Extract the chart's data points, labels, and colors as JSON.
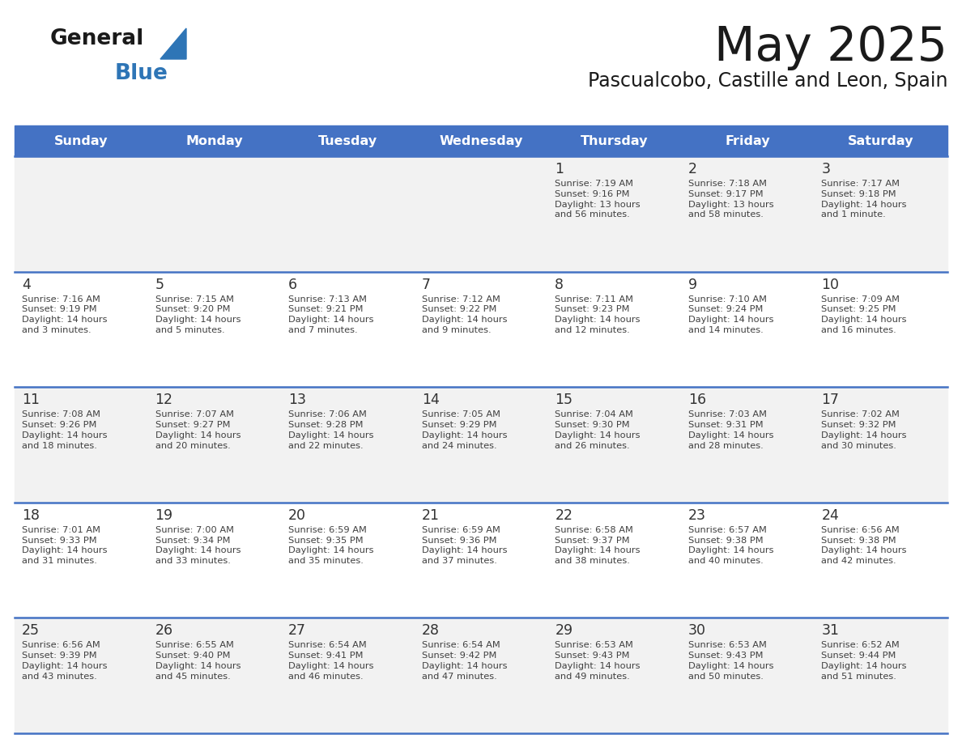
{
  "title": "May 2025",
  "subtitle": "Pascualcobo, Castille and Leon, Spain",
  "header_bg_color": "#4472C4",
  "header_text_color": "#FFFFFF",
  "day_names": [
    "Sunday",
    "Monday",
    "Tuesday",
    "Wednesday",
    "Thursday",
    "Friday",
    "Saturday"
  ],
  "row0_color": "#F2F2F2",
  "row1_color": "#FFFFFF",
  "cell_text_color": "#404040",
  "day_num_color": "#333333",
  "divider_color": "#4472C4",
  "logo_color": "#2E75B6",
  "days": [
    {
      "day": 1,
      "col": 4,
      "row": 0,
      "sunrise": "7:19 AM",
      "sunset": "9:16 PM",
      "daylight_hours": 13,
      "daylight_minutes": 56
    },
    {
      "day": 2,
      "col": 5,
      "row": 0,
      "sunrise": "7:18 AM",
      "sunset": "9:17 PM",
      "daylight_hours": 13,
      "daylight_minutes": 58
    },
    {
      "day": 3,
      "col": 6,
      "row": 0,
      "sunrise": "7:17 AM",
      "sunset": "9:18 PM",
      "daylight_hours": 14,
      "daylight_minutes": 1
    },
    {
      "day": 4,
      "col": 0,
      "row": 1,
      "sunrise": "7:16 AM",
      "sunset": "9:19 PM",
      "daylight_hours": 14,
      "daylight_minutes": 3
    },
    {
      "day": 5,
      "col": 1,
      "row": 1,
      "sunrise": "7:15 AM",
      "sunset": "9:20 PM",
      "daylight_hours": 14,
      "daylight_minutes": 5
    },
    {
      "day": 6,
      "col": 2,
      "row": 1,
      "sunrise": "7:13 AM",
      "sunset": "9:21 PM",
      "daylight_hours": 14,
      "daylight_minutes": 7
    },
    {
      "day": 7,
      "col": 3,
      "row": 1,
      "sunrise": "7:12 AM",
      "sunset": "9:22 PM",
      "daylight_hours": 14,
      "daylight_minutes": 9
    },
    {
      "day": 8,
      "col": 4,
      "row": 1,
      "sunrise": "7:11 AM",
      "sunset": "9:23 PM",
      "daylight_hours": 14,
      "daylight_minutes": 12
    },
    {
      "day": 9,
      "col": 5,
      "row": 1,
      "sunrise": "7:10 AM",
      "sunset": "9:24 PM",
      "daylight_hours": 14,
      "daylight_minutes": 14
    },
    {
      "day": 10,
      "col": 6,
      "row": 1,
      "sunrise": "7:09 AM",
      "sunset": "9:25 PM",
      "daylight_hours": 14,
      "daylight_minutes": 16
    },
    {
      "day": 11,
      "col": 0,
      "row": 2,
      "sunrise": "7:08 AM",
      "sunset": "9:26 PM",
      "daylight_hours": 14,
      "daylight_minutes": 18
    },
    {
      "day": 12,
      "col": 1,
      "row": 2,
      "sunrise": "7:07 AM",
      "sunset": "9:27 PM",
      "daylight_hours": 14,
      "daylight_minutes": 20
    },
    {
      "day": 13,
      "col": 2,
      "row": 2,
      "sunrise": "7:06 AM",
      "sunset": "9:28 PM",
      "daylight_hours": 14,
      "daylight_minutes": 22
    },
    {
      "day": 14,
      "col": 3,
      "row": 2,
      "sunrise": "7:05 AM",
      "sunset": "9:29 PM",
      "daylight_hours": 14,
      "daylight_minutes": 24
    },
    {
      "day": 15,
      "col": 4,
      "row": 2,
      "sunrise": "7:04 AM",
      "sunset": "9:30 PM",
      "daylight_hours": 14,
      "daylight_minutes": 26
    },
    {
      "day": 16,
      "col": 5,
      "row": 2,
      "sunrise": "7:03 AM",
      "sunset": "9:31 PM",
      "daylight_hours": 14,
      "daylight_minutes": 28
    },
    {
      "day": 17,
      "col": 6,
      "row": 2,
      "sunrise": "7:02 AM",
      "sunset": "9:32 PM",
      "daylight_hours": 14,
      "daylight_minutes": 30
    },
    {
      "day": 18,
      "col": 0,
      "row": 3,
      "sunrise": "7:01 AM",
      "sunset": "9:33 PM",
      "daylight_hours": 14,
      "daylight_minutes": 31
    },
    {
      "day": 19,
      "col": 1,
      "row": 3,
      "sunrise": "7:00 AM",
      "sunset": "9:34 PM",
      "daylight_hours": 14,
      "daylight_minutes": 33
    },
    {
      "day": 20,
      "col": 2,
      "row": 3,
      "sunrise": "6:59 AM",
      "sunset": "9:35 PM",
      "daylight_hours": 14,
      "daylight_minutes": 35
    },
    {
      "day": 21,
      "col": 3,
      "row": 3,
      "sunrise": "6:59 AM",
      "sunset": "9:36 PM",
      "daylight_hours": 14,
      "daylight_minutes": 37
    },
    {
      "day": 22,
      "col": 4,
      "row": 3,
      "sunrise": "6:58 AM",
      "sunset": "9:37 PM",
      "daylight_hours": 14,
      "daylight_minutes": 38
    },
    {
      "day": 23,
      "col": 5,
      "row": 3,
      "sunrise": "6:57 AM",
      "sunset": "9:38 PM",
      "daylight_hours": 14,
      "daylight_minutes": 40
    },
    {
      "day": 24,
      "col": 6,
      "row": 3,
      "sunrise": "6:56 AM",
      "sunset": "9:38 PM",
      "daylight_hours": 14,
      "daylight_minutes": 42
    },
    {
      "day": 25,
      "col": 0,
      "row": 4,
      "sunrise": "6:56 AM",
      "sunset": "9:39 PM",
      "daylight_hours": 14,
      "daylight_minutes": 43
    },
    {
      "day": 26,
      "col": 1,
      "row": 4,
      "sunrise": "6:55 AM",
      "sunset": "9:40 PM",
      "daylight_hours": 14,
      "daylight_minutes": 45
    },
    {
      "day": 27,
      "col": 2,
      "row": 4,
      "sunrise": "6:54 AM",
      "sunset": "9:41 PM",
      "daylight_hours": 14,
      "daylight_minutes": 46
    },
    {
      "day": 28,
      "col": 3,
      "row": 4,
      "sunrise": "6:54 AM",
      "sunset": "9:42 PM",
      "daylight_hours": 14,
      "daylight_minutes": 47
    },
    {
      "day": 29,
      "col": 4,
      "row": 4,
      "sunrise": "6:53 AM",
      "sunset": "9:43 PM",
      "daylight_hours": 14,
      "daylight_minutes": 49
    },
    {
      "day": 30,
      "col": 5,
      "row": 4,
      "sunrise": "6:53 AM",
      "sunset": "9:43 PM",
      "daylight_hours": 14,
      "daylight_minutes": 50
    },
    {
      "day": 31,
      "col": 6,
      "row": 4,
      "sunrise": "6:52 AM",
      "sunset": "9:44 PM",
      "daylight_hours": 14,
      "daylight_minutes": 51
    }
  ]
}
